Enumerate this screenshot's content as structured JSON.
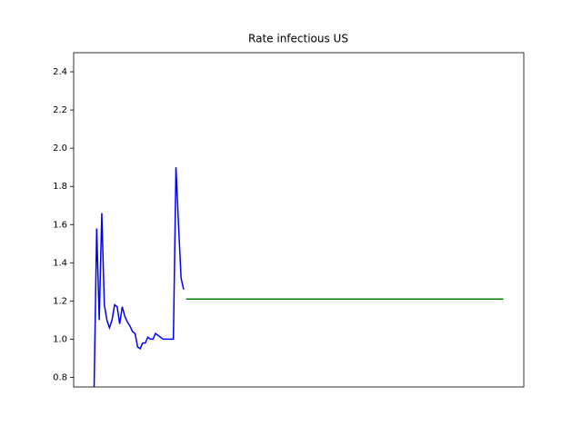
{
  "chart_data": {
    "type": "line",
    "title": "Rate infectious US",
    "series": [
      {
        "color": "#0000ff",
        "x": [
          0,
          1,
          2,
          3,
          4,
          5,
          6,
          7,
          8,
          9,
          10,
          11,
          12,
          13,
          14,
          15,
          16,
          17,
          18,
          19,
          20,
          21,
          22,
          23,
          24,
          25,
          26,
          27,
          28,
          29,
          30,
          31,
          32,
          33,
          34,
          35
        ],
        "values": [
          0.75,
          1.58,
          1.1,
          1.66,
          1.18,
          1.1,
          1.06,
          1.1,
          1.18,
          1.17,
          1.08,
          1.17,
          1.12,
          1.09,
          1.07,
          1.04,
          1.03,
          0.96,
          0.95,
          0.98,
          0.98,
          1.01,
          1.0,
          1.0,
          1.03,
          1.02,
          1.01,
          1.0,
          1.0,
          1.0,
          1.0,
          1.0,
          1.9,
          1.6,
          1.32,
          1.26
        ]
      },
      {
        "color": "#008000",
        "x": [
          36,
          160
        ],
        "values": [
          1.21,
          1.21
        ]
      }
    ],
    "xlim": [
      -8,
      168
    ],
    "ylim": [
      0.75,
      2.5
    ],
    "yticks": [
      {
        "value": 0.8,
        "label": "0.8"
      },
      {
        "value": 1.0,
        "label": "1.0"
      },
      {
        "value": 1.2,
        "label": "1.2"
      },
      {
        "value": 1.4,
        "label": "1.4"
      },
      {
        "value": 1.6,
        "label": "1.6"
      },
      {
        "value": 1.8,
        "label": "1.8"
      },
      {
        "value": 2.0,
        "label": "2.0"
      },
      {
        "value": 2.2,
        "label": "2.2"
      },
      {
        "value": 2.4,
        "label": "2.4"
      }
    ]
  }
}
